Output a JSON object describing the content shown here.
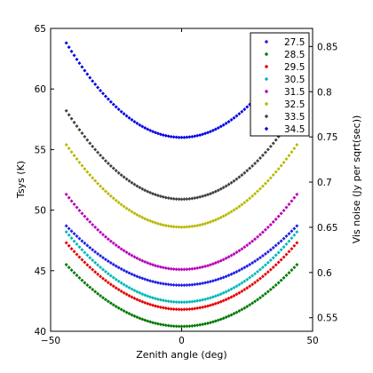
{
  "chart_data": {
    "type": "scatter",
    "title": "",
    "xlabel": "Zenith angle (deg)",
    "ylabel": "Tsys (K)",
    "y2label": "Vis noise (Jy per sqrt(sec))",
    "xlim": [
      -50,
      50
    ],
    "ylim": [
      40,
      65
    ],
    "y2lim": [
      0.535,
      0.87
    ],
    "x_ticks": [
      -50,
      0,
      50
    ],
    "x_tick_labels": [
      "−50",
      "0",
      "50"
    ],
    "y_ticks": [
      40,
      45,
      50,
      55,
      60,
      65
    ],
    "y2_ticks": [
      0.55,
      0.6,
      0.65,
      0.7,
      0.75,
      0.8,
      0.85
    ],
    "grid": false,
    "legend_position": "top-right",
    "x_range": [
      -44,
      44
    ],
    "x_step": 1,
    "model": "Tsys(x) = min + (edge - min) * (x/44)^2",
    "series": [
      {
        "name": "27.5",
        "color": "#1f1fe6",
        "min": 43.8,
        "edge": 48.7
      },
      {
        "name": "28.5",
        "color": "#007a00",
        "min": 40.4,
        "edge": 45.5
      },
      {
        "name": "29.5",
        "color": "#e60000",
        "min": 41.8,
        "edge": 47.3
      },
      {
        "name": "30.5",
        "color": "#00b8b8",
        "min": 42.4,
        "edge": 48.2
      },
      {
        "name": "31.5",
        "color": "#b800b8",
        "min": 45.1,
        "edge": 51.3
      },
      {
        "name": "32.5",
        "color": "#b8b800",
        "min": 48.6,
        "edge": 55.4
      },
      {
        "name": "33.5",
        "color": "#404040",
        "min": 50.9,
        "edge": 58.2
      },
      {
        "name": "34.5",
        "color": "#0000e6",
        "min": 56.0,
        "edge": 63.8
      }
    ]
  }
}
